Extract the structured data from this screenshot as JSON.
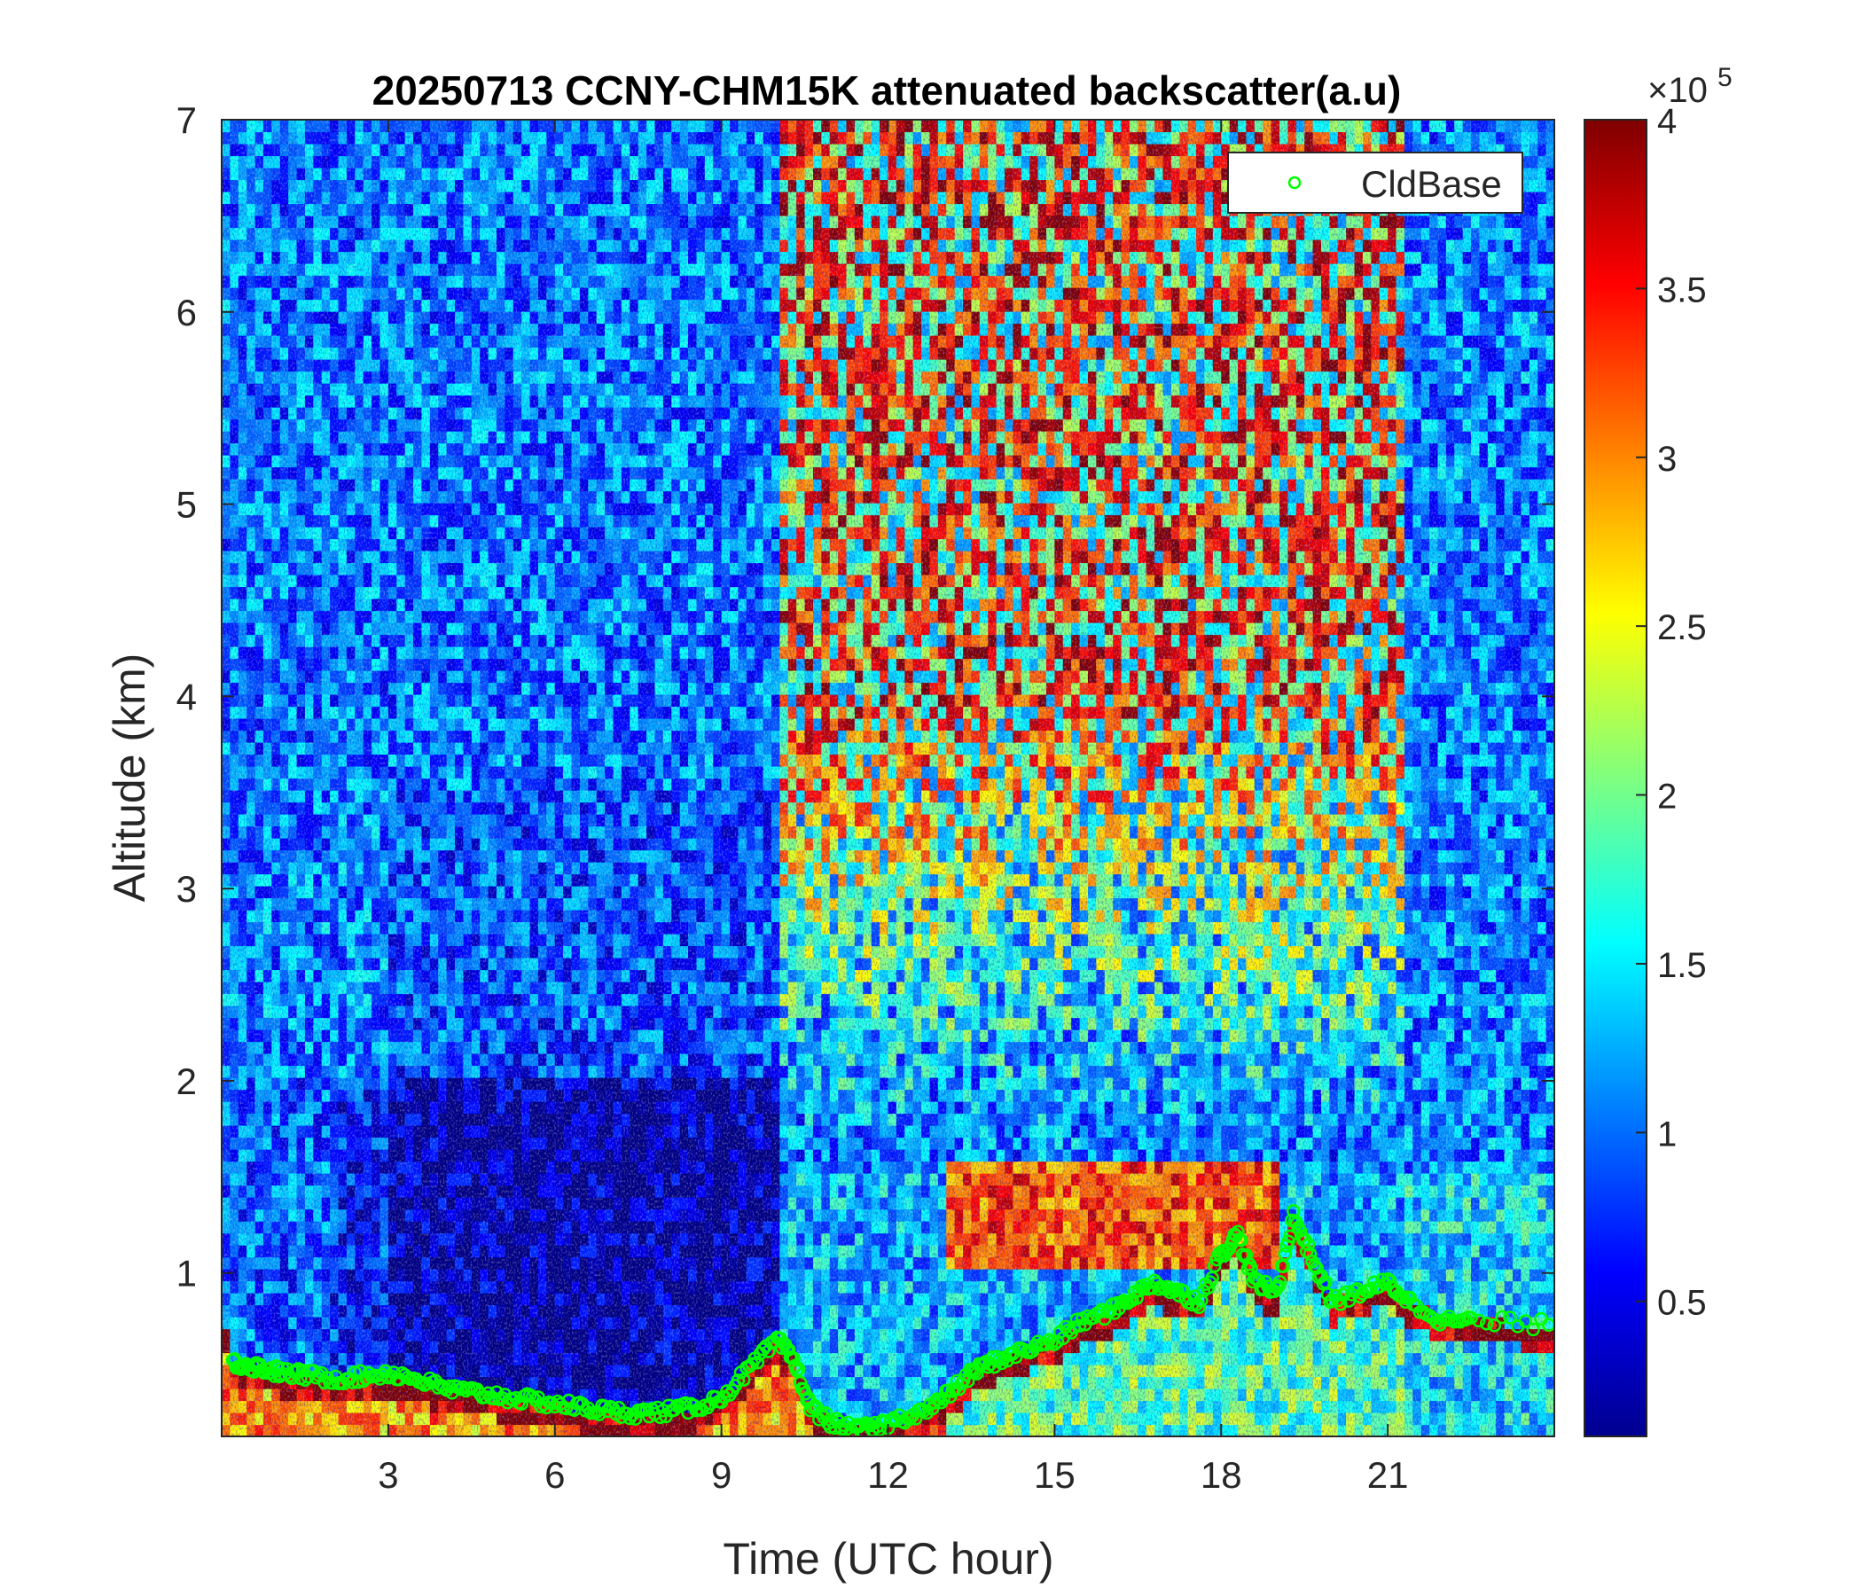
{
  "chart_data": {
    "type": "heatmap",
    "title": "20250713 CCNY-CHM15K attenuated backscatter(a.u)",
    "xlabel": "Time (UTC hour)",
    "ylabel": "Altitude (km)",
    "xlim": [
      0,
      24
    ],
    "ylim": [
      0.15,
      7
    ],
    "x_ticks": [
      3,
      6,
      9,
      12,
      15,
      18,
      21
    ],
    "y_ticks": [
      1,
      2,
      3,
      4,
      5,
      6,
      7
    ],
    "colorbar": {
      "colormap": "jet",
      "range": [
        0.1,
        4
      ],
      "ticks": [
        0.5,
        1,
        1.5,
        2,
        2.5,
        3,
        3.5,
        4
      ],
      "exponent_label": "×10",
      "exponent": "5"
    },
    "legend": {
      "location": "top-right",
      "entries": [
        "CldBase"
      ]
    },
    "series": [
      {
        "name": "CldBase",
        "marker": "circle",
        "color": "#00ff00",
        "x": [
          0.2,
          0.5,
          0.8,
          1.1,
          1.5,
          2.0,
          2.5,
          3.0,
          3.5,
          4.0,
          4.5,
          5.0,
          5.5,
          6.0,
          6.5,
          7.0,
          7.5,
          8.0,
          8.5,
          9.0,
          9.5,
          10.0,
          10.3,
          10.6,
          11.0,
          11.4,
          11.8,
          12.3,
          12.8,
          13.2,
          13.6,
          14.0,
          14.5,
          15.0,
          15.5,
          16.0,
          16.4,
          16.8,
          17.2,
          17.6,
          18.0,
          18.3,
          18.6,
          19.0,
          19.3,
          19.6,
          20.0,
          20.5,
          21.0,
          21.4,
          22.0,
          22.5,
          23.9
        ],
        "y": [
          0.53,
          0.52,
          0.5,
          0.48,
          0.47,
          0.45,
          0.46,
          0.48,
          0.45,
          0.4,
          0.38,
          0.36,
          0.34,
          0.32,
          0.3,
          0.28,
          0.27,
          0.28,
          0.3,
          0.35,
          0.5,
          0.65,
          0.55,
          0.3,
          0.22,
          0.18,
          0.2,
          0.25,
          0.3,
          0.4,
          0.5,
          0.55,
          0.6,
          0.65,
          0.75,
          0.8,
          0.88,
          0.95,
          0.9,
          0.85,
          1.1,
          1.2,
          0.95,
          0.9,
          1.3,
          1.1,
          0.85,
          0.9,
          0.95,
          0.85,
          0.75,
          0.75,
          0.73
        ]
      }
    ]
  }
}
